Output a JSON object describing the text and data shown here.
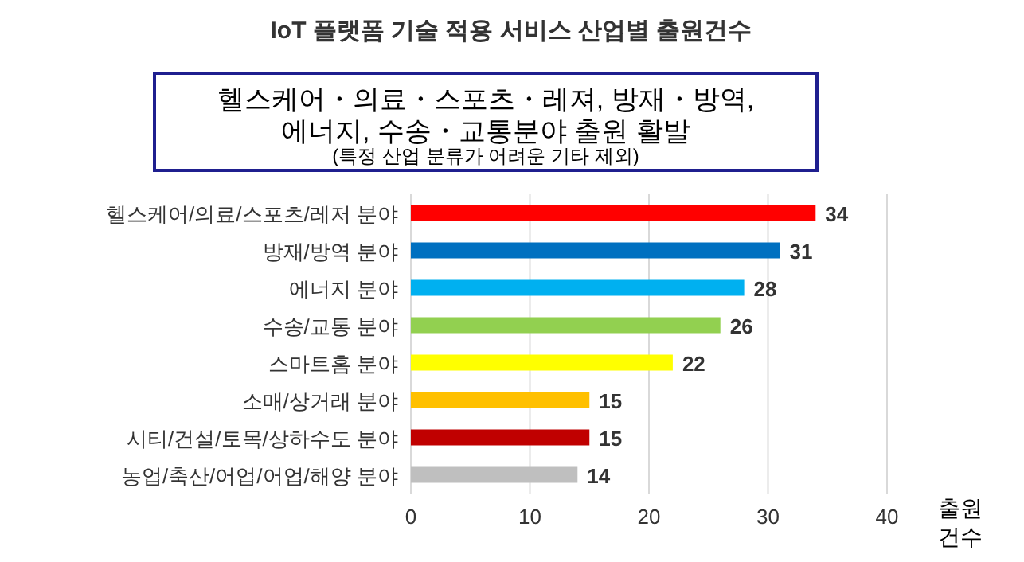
{
  "chart_data": {
    "type": "bar",
    "orientation": "horizontal",
    "title": "IoT 플랫폼 기술 적용 서비스 산업별 출원건수",
    "annotations": [
      "헬스케어・의료・스포츠・레져, 방재・방역, 에너지, 수송・교통분야 출원 활발",
      "(특정 산업 분류가 어려운 기타 제외)"
    ],
    "categories": [
      "헬스케어/의료/스포츠/레저 분야",
      "방재/방역 분야",
      "에너지 분야",
      "수송/교통 분야",
      "스마트홈 분야",
      "소매/상거래 분야",
      "시티/건설/토목/상하수도 분야",
      "농업/축산/어업/어업/해양 분야"
    ],
    "values": [
      34,
      31,
      28,
      26,
      22,
      15,
      15,
      14
    ],
    "colors": [
      "#ff0000",
      "#0070c0",
      "#00b0f0",
      "#92d050",
      "#ffff00",
      "#ffc000",
      "#c00000",
      "#bfbfbf"
    ],
    "xlabel": "출원건수",
    "xlim": [
      0,
      40
    ],
    "xticks": [
      0,
      10,
      20,
      30,
      40
    ],
    "grid": "x",
    "data_labels": true
  }
}
